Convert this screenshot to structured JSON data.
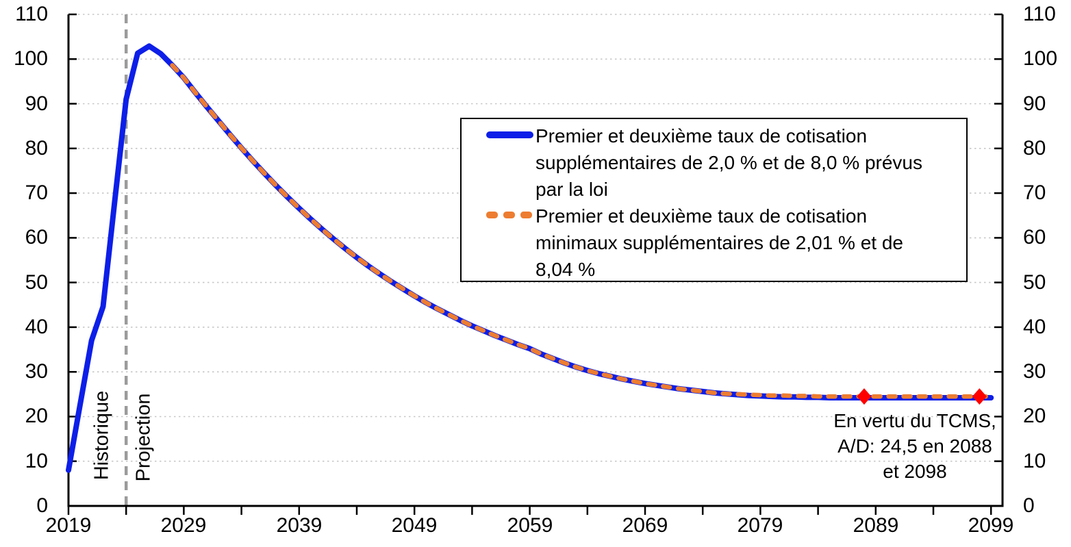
{
  "chart_data": {
    "type": "line",
    "title": "",
    "xlabel": "",
    "ylabel": "",
    "x_axis": {
      "range": [
        2019,
        2100
      ],
      "tick_labels": [
        "2019",
        "2029",
        "2039",
        "2049",
        "2059",
        "2069",
        "2079",
        "2089",
        "2099"
      ],
      "minor_tick_start": 2019,
      "minor_tick_step": 5,
      "minor_tick_end": 2099
    },
    "y_axis": {
      "range": [
        0,
        110
      ],
      "tick_labels": [
        "0",
        "10",
        "20",
        "30",
        "40",
        "50",
        "60",
        "70",
        "80",
        "90",
        "100",
        "110"
      ],
      "sides": "both"
    },
    "grid": {
      "horizontal_dotted": true,
      "color": "#c7c7c7"
    },
    "divider": {
      "year": 2024,
      "label_left": "Historique",
      "label_right": "Projection",
      "color": "#9b9b9b"
    },
    "series": [
      {
        "name": "Premier et deuxième taux de cotisation supplémentaires de 2,0 % et de 8,0 % prévus par la loi",
        "color": "#0d1fe8",
        "style": "solid",
        "start_year": 2019,
        "values": [
          8,
          22.5,
          37,
          44.6,
          68,
          91,
          101.3,
          102.9,
          101.2,
          98.6,
          95.8,
          92.5,
          89.3,
          86.2,
          83.1,
          80.1,
          77.2,
          74.4,
          71.7,
          69.1,
          66.6,
          64.2,
          61.9,
          59.7,
          57.6,
          55.6,
          53.7,
          51.9,
          50.2,
          48.6,
          47.0,
          45.5,
          44.1,
          42.8,
          41.5,
          40.3,
          39.2,
          38.1,
          37.1,
          36.1,
          35.2,
          34.0,
          33.0,
          32.0,
          31.1,
          30.3,
          29.6,
          29.0,
          28.4,
          27.9,
          27.4,
          27.0,
          26.6,
          26.2,
          25.9,
          25.6,
          25.3,
          25.1,
          24.9,
          24.7,
          24.6,
          24.5,
          24.4,
          24.4,
          24.3,
          24.3,
          24.2,
          24.2,
          24.2,
          24.2,
          24.2,
          24.2,
          24.2,
          24.2,
          24.2,
          24.2,
          24.2,
          24.2,
          24.2,
          24.2,
          24.2
        ]
      },
      {
        "name": "Premier et deuxième taux de cotisation minimaux supplémentaires de 2,01 % et de 8,04 %",
        "color": "#ED7D31",
        "style": "dashed",
        "start_year": 2028,
        "values": [
          98.6,
          95.8,
          92.5,
          89.3,
          86.2,
          83.1,
          80.1,
          77.2,
          74.4,
          71.7,
          69.1,
          66.6,
          64.2,
          61.9,
          59.7,
          57.6,
          55.6,
          53.7,
          51.9,
          50.2,
          48.6,
          47.0,
          45.5,
          44.1,
          42.8,
          41.5,
          40.3,
          39.2,
          38.1,
          37.1,
          36.1,
          35.2,
          34.0,
          33.0,
          32.0,
          31.1,
          30.3,
          29.6,
          29.0,
          28.4,
          27.9,
          27.4,
          27.0,
          26.6,
          26.2,
          25.9,
          25.6,
          25.3,
          25.1,
          25.0,
          24.9,
          24.8,
          24.7,
          24.7,
          24.6,
          24.6,
          24.5,
          24.5,
          24.5,
          24.5,
          24.5,
          24.5,
          24.5,
          24.5,
          24.5,
          24.5,
          24.5,
          24.5,
          24.5,
          24.5,
          24.5,
          24.5
        ]
      }
    ],
    "markers": {
      "shape": "diamond",
      "color": "#ff0000",
      "points": [
        {
          "year": 2088,
          "value": 24.5
        },
        {
          "year": 2098,
          "value": 24.5
        }
      ]
    },
    "annotation": {
      "lines": [
        "En vertu du TCMS,",
        "A/D: 24,5 en 2088",
        "et 2098"
      ]
    }
  },
  "legend": {
    "items": [
      {
        "swatch": "solid-blue",
        "lines": [
          "Premier et deuxième taux de cotisation",
          "supplémentaires de 2,0 % et de 8,0 % prévus",
          "par la loi"
        ]
      },
      {
        "swatch": "dashed-orange",
        "lines": [
          "Premier et deuxième taux de cotisation",
          "minimaux supplémentaires de 2,01 % et de",
          "8,04 %"
        ]
      }
    ]
  }
}
